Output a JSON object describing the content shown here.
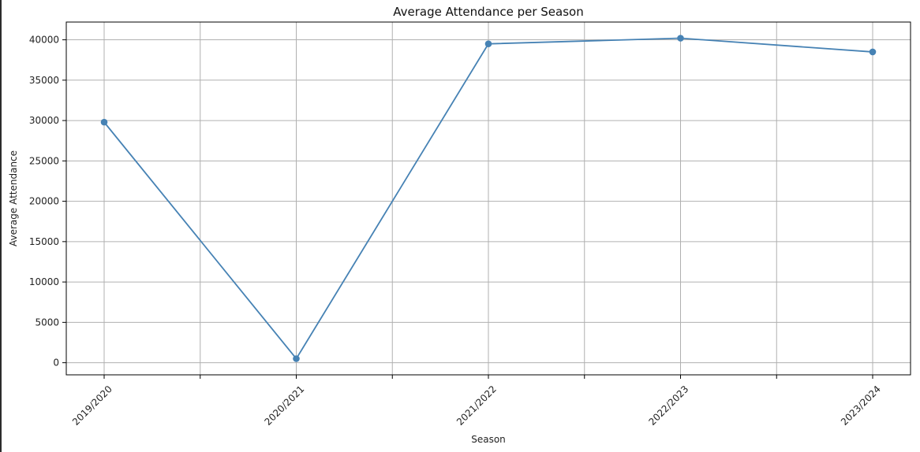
{
  "chart_data": {
    "type": "line",
    "title": "Average Attendance per Season",
    "xlabel": "Season",
    "ylabel": "Average Attendance",
    "categories": [
      "2019/2020",
      "2020/2021",
      "2021/2022",
      "2022/2023",
      "2023/2024"
    ],
    "series": [
      {
        "values": [
          29800,
          500,
          39500,
          40200,
          38500
        ]
      }
    ],
    "ylim": [
      -1500,
      42200
    ],
    "yticks": [
      0,
      5000,
      10000,
      15000,
      20000,
      25000,
      30000,
      35000,
      40000
    ],
    "grid": true,
    "line_color": "#4682b4"
  }
}
